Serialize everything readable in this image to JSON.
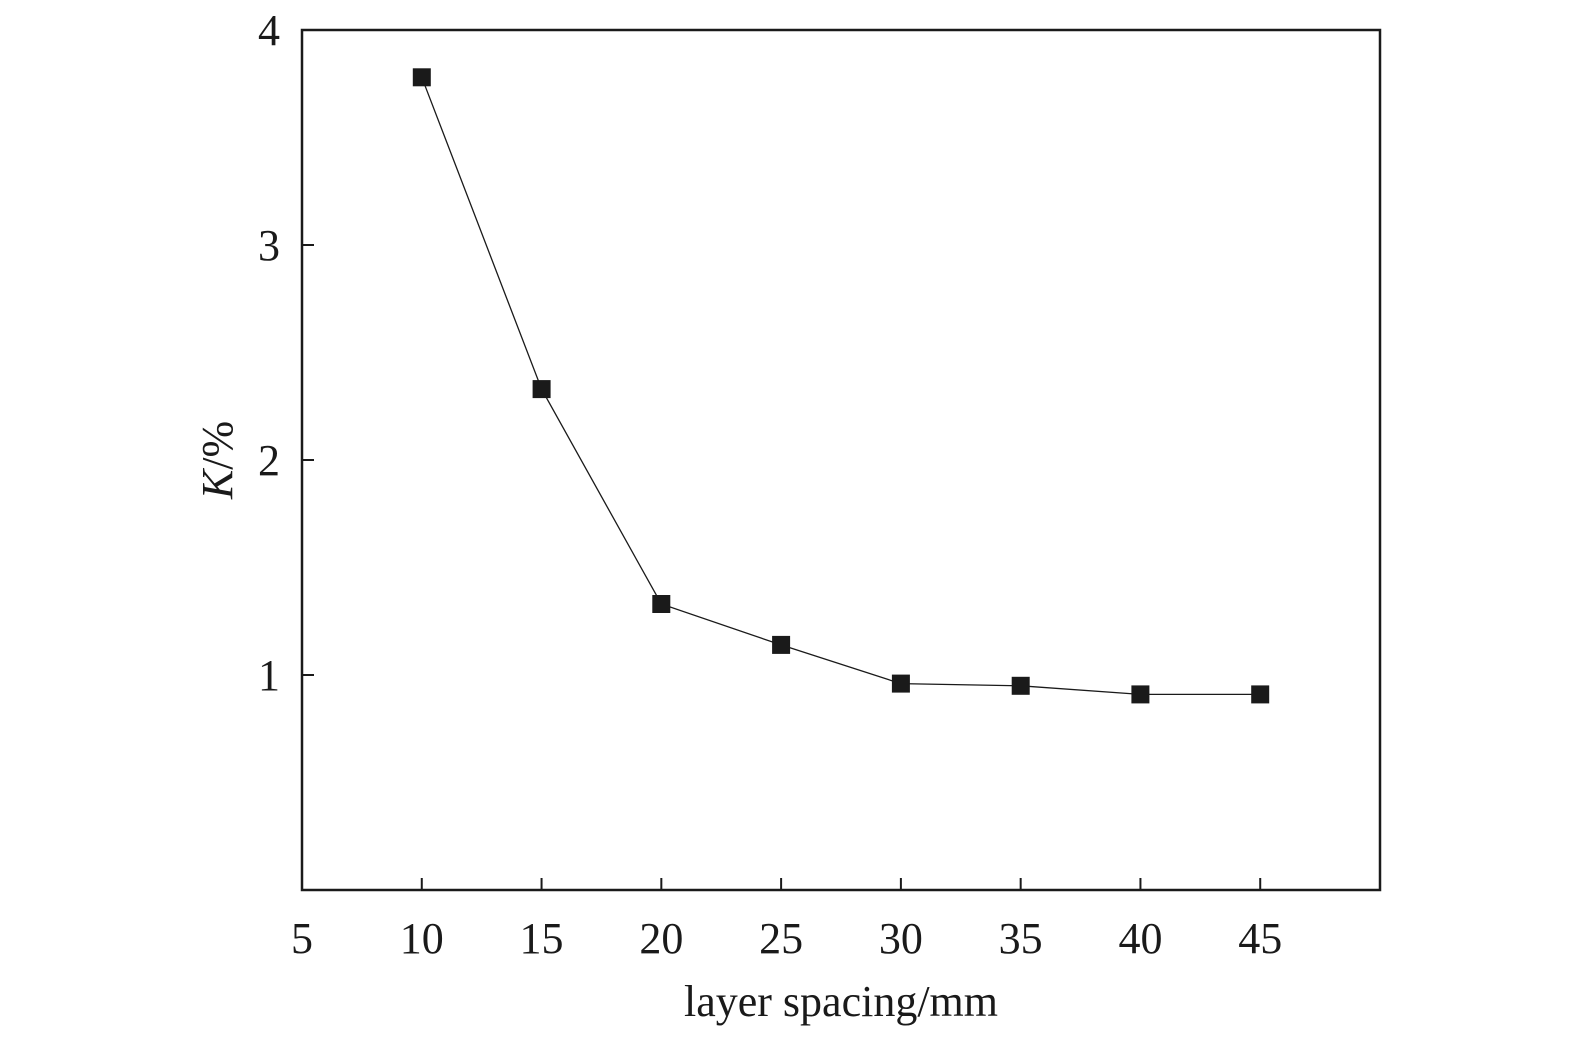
{
  "chart_data": {
    "type": "line",
    "title": "",
    "xlabel": "layer spacing/mm",
    "ylabel_symbol": "K",
    "ylabel_unit": "/%",
    "xlim": [
      5,
      50
    ],
    "ylim": [
      0,
      4
    ],
    "xticks": [
      5,
      10,
      15,
      20,
      25,
      30,
      35,
      40,
      45
    ],
    "yticks": [
      1,
      2,
      3,
      4
    ],
    "grid": false,
    "legend": "none",
    "marker": "square",
    "colors": {
      "line": "#1a1a1a",
      "marker": "#1a1a1a",
      "axis": "#1a1a1a"
    },
    "series": [
      {
        "x": [
          10,
          15,
          20,
          25,
          30,
          35,
          40,
          45
        ],
        "values": [
          3.78,
          2.33,
          1.33,
          1.14,
          0.96,
          0.95,
          0.91,
          0.91
        ]
      }
    ]
  }
}
